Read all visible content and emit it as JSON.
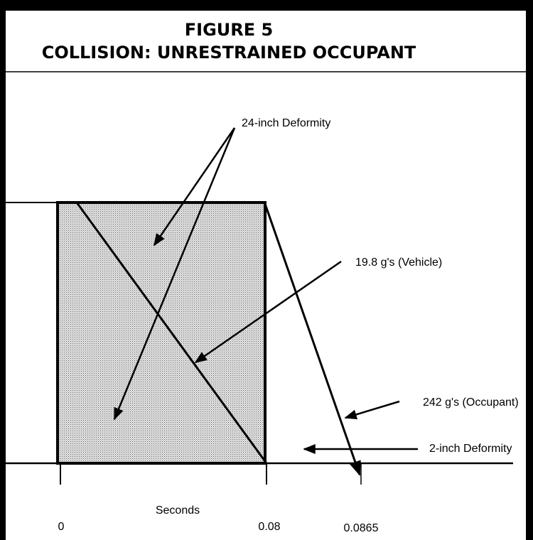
{
  "header": {
    "figure": "FIGURE 5",
    "title": "COLLISION: UNRESTRAINED OCCUPANT"
  },
  "diagram": {
    "annotations": [
      "24-inch Deformity",
      "19.8 g's (Vehicle)",
      "242 g's (Occupant)",
      "2-inch Deformity"
    ],
    "axis": {
      "label": "Seconds",
      "ticks": [
        "0",
        "0.08",
        "0.0865"
      ]
    }
  }
}
